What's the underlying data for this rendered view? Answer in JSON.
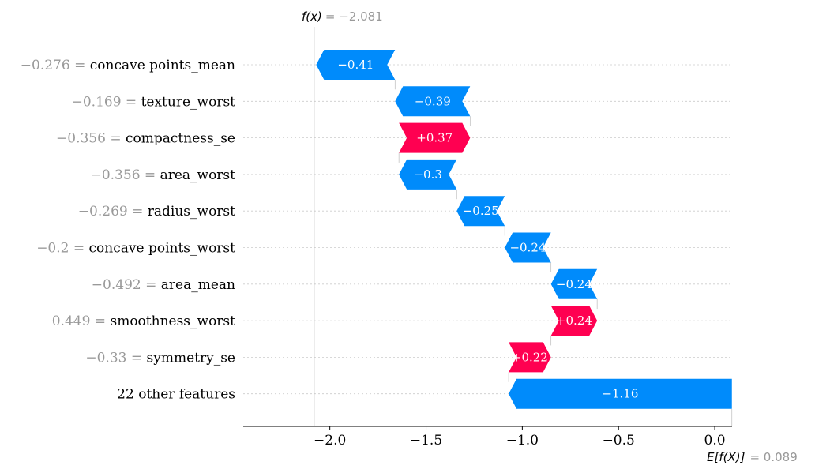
{
  "chart_data": {
    "type": "waterfall",
    "fx": {
      "label": "f(x)",
      "value": "−2.081",
      "number": -2.081
    },
    "base": {
      "label": "E[f(X)]",
      "value": "0.089",
      "number": 0.089
    },
    "features": [
      {
        "value": "−0.276",
        "name": "concave points_mean",
        "shap": -0.41,
        "label": "−0.41"
      },
      {
        "value": "−0.169",
        "name": "texture_worst",
        "shap": -0.39,
        "label": "−0.39"
      },
      {
        "value": "−0.356",
        "name": "compactness_se",
        "shap": 0.37,
        "label": "+0.37"
      },
      {
        "value": "−0.356",
        "name": "area_worst",
        "shap": -0.3,
        "label": "−0.3"
      },
      {
        "value": "−0.269",
        "name": "radius_worst",
        "shap": -0.25,
        "label": "−0.25"
      },
      {
        "value": "−0.2",
        "name": "concave points_worst",
        "shap": -0.24,
        "label": "−0.24"
      },
      {
        "value": "−0.492",
        "name": "area_mean",
        "shap": -0.24,
        "label": "−0.24"
      },
      {
        "value": "0.449",
        "name": "smoothness_worst",
        "shap": 0.24,
        "label": "+0.24"
      },
      {
        "value": "−0.33",
        "name": "symmetry_se",
        "shap": 0.22,
        "label": "+0.22"
      },
      {
        "value": "",
        "name": "22 other features",
        "shap": -1.16,
        "label": "−1.16"
      }
    ],
    "xticks": [
      {
        "v": -2.0,
        "label": "−2.0"
      },
      {
        "v": -1.5,
        "label": "−1.5"
      },
      {
        "v": -1.0,
        "label": "−1.0"
      },
      {
        "v": -0.5,
        "label": "−0.5"
      },
      {
        "v": 0.0,
        "label": "0.0"
      }
    ],
    "xlim": [
      -2.45,
      0.09
    ],
    "colors": {
      "negative": "#008bfb",
      "positive": "#ff0051"
    }
  }
}
